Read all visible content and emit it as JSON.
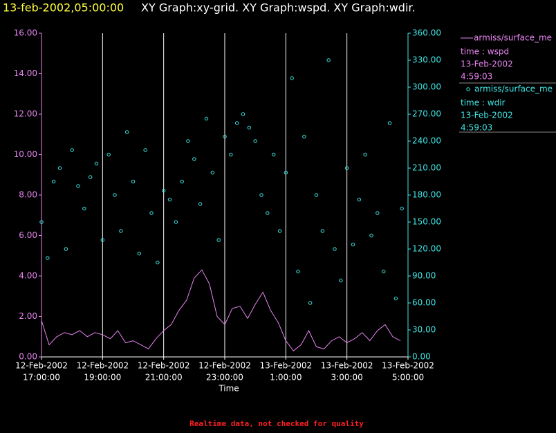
{
  "header": {
    "timestamp": "13-feb-2002,05:00:00",
    "graphs": "XY Graph:xy-grid.  XY Graph:wspd.  XY Graph:wdir."
  },
  "footer": "Realtime data, not checked for quality",
  "chart_data": {
    "type": "line",
    "x_label": "Time",
    "grid": true,
    "xlim": [
      "2002-02-12T17:00:00",
      "2002-02-13T05:00:00"
    ],
    "xticks": [
      {
        "value": "2002-02-12T17:00:00",
        "label": [
          "12-Feb-2002",
          "17:00:00"
        ]
      },
      {
        "value": "2002-02-12T19:00:00",
        "label": [
          "12-Feb-2002",
          "19:00:00"
        ]
      },
      {
        "value": "2002-02-12T21:00:00",
        "label": [
          "12-Feb-2002",
          "21:00:00"
        ]
      },
      {
        "value": "2002-02-12T23:00:00",
        "label": [
          "12-Feb-2002",
          "23:00:00"
        ]
      },
      {
        "value": "2002-02-13T01:00:00",
        "label": [
          "13-Feb-2002",
          "1:00:00"
        ]
      },
      {
        "value": "2002-02-13T03:00:00",
        "label": [
          "13-Feb-2002",
          "3:00:00"
        ]
      },
      {
        "value": "2002-02-13T05:00:00",
        "label": [
          "13-Feb-2002",
          "5:00:00"
        ]
      }
    ],
    "ylim": [
      0,
      16
    ],
    "yticks": [
      {
        "value": 0,
        "label": "0.00"
      },
      {
        "value": 2,
        "label": "2.00"
      },
      {
        "value": 4,
        "label": "4.00"
      },
      {
        "value": 6,
        "label": "6.00"
      },
      {
        "value": 8,
        "label": "8.00"
      },
      {
        "value": 10,
        "label": "10.00"
      },
      {
        "value": 12,
        "label": "12.00"
      },
      {
        "value": 14,
        "label": "14.00"
      },
      {
        "value": 16,
        "label": "16.00"
      }
    ],
    "y2lim": [
      0,
      360
    ],
    "y2ticks": [
      {
        "value": 0,
        "label": "0.00"
      },
      {
        "value": 30,
        "label": "30.00"
      },
      {
        "value": 60,
        "label": "60.00"
      },
      {
        "value": 90,
        "label": "90.00"
      },
      {
        "value": 120,
        "label": "120.00"
      },
      {
        "value": 150,
        "label": "150.00"
      },
      {
        "value": 180,
        "label": "180.00"
      },
      {
        "value": 210,
        "label": "210.00"
      },
      {
        "value": 240,
        "label": "240.00"
      },
      {
        "value": 270,
        "label": "270.00"
      },
      {
        "value": 300,
        "label": "300.00"
      },
      {
        "value": 330,
        "label": "330.00"
      },
      {
        "value": 360,
        "label": "360.00"
      }
    ],
    "series": [
      {
        "name": "armiss/surface_me",
        "details": [
          "time : wspd",
          "13-Feb-2002",
          "4:59:03"
        ],
        "color": "#e884f0",
        "type": "line",
        "x": [
          "2002-02-12T17:00:00",
          "2002-02-12T17:15:00",
          "2002-02-12T17:30:00",
          "2002-02-12T17:45:00",
          "2002-02-12T18:00:00",
          "2002-02-12T18:15:00",
          "2002-02-12T18:30:00",
          "2002-02-12T18:45:00",
          "2002-02-12T19:00:00",
          "2002-02-12T19:15:00",
          "2002-02-12T19:30:00",
          "2002-02-12T19:45:00",
          "2002-02-12T20:00:00",
          "2002-02-12T20:15:00",
          "2002-02-12T20:30:00",
          "2002-02-12T20:45:00",
          "2002-02-12T21:00:00",
          "2002-02-12T21:15:00",
          "2002-02-12T21:30:00",
          "2002-02-12T21:45:00",
          "2002-02-12T22:00:00",
          "2002-02-12T22:15:00",
          "2002-02-12T22:30:00",
          "2002-02-12T22:45:00",
          "2002-02-12T23:00:00",
          "2002-02-12T23:15:00",
          "2002-02-12T23:30:00",
          "2002-02-12T23:45:00",
          "2002-02-13T00:00:00",
          "2002-02-13T00:15:00",
          "2002-02-13T00:30:00",
          "2002-02-13T00:45:00",
          "2002-02-13T01:00:00",
          "2002-02-13T01:15:00",
          "2002-02-13T01:30:00",
          "2002-02-13T01:45:00",
          "2002-02-13T02:00:00",
          "2002-02-13T02:15:00",
          "2002-02-13T02:30:00",
          "2002-02-13T02:45:00",
          "2002-02-13T03:00:00",
          "2002-02-13T03:15:00",
          "2002-02-13T03:30:00",
          "2002-02-13T03:45:00",
          "2002-02-13T04:00:00",
          "2002-02-13T04:15:00",
          "2002-02-13T04:30:00",
          "2002-02-13T04:45:00"
        ],
        "values": [
          1.8,
          0.6,
          1.0,
          1.2,
          1.1,
          1.3,
          1.0,
          1.2,
          1.1,
          0.9,
          1.3,
          0.7,
          0.8,
          0.6,
          0.4,
          0.9,
          1.3,
          1.6,
          2.3,
          2.8,
          3.9,
          4.3,
          3.6,
          2.0,
          1.6,
          2.4,
          2.5,
          1.9,
          2.6,
          3.2,
          2.3,
          1.7,
          0.8,
          0.3,
          0.6,
          1.3,
          0.5,
          0.4,
          0.8,
          1.0,
          0.7,
          0.9,
          1.2,
          0.8,
          1.3,
          1.6,
          1.0,
          0.8
        ]
      },
      {
        "name": "armiss/surface_me",
        "details": [
          "time : wdir",
          "13-Feb-2002",
          "4:59:03"
        ],
        "color": "#40e8e8",
        "type": "scatter",
        "axis": "y2",
        "x": [
          "2002-02-12T17:00:00",
          "2002-02-12T17:12:00",
          "2002-02-12T17:24:00",
          "2002-02-12T17:36:00",
          "2002-02-12T17:48:00",
          "2002-02-12T18:00:00",
          "2002-02-12T18:12:00",
          "2002-02-12T18:24:00",
          "2002-02-12T18:36:00",
          "2002-02-12T18:48:00",
          "2002-02-12T19:00:00",
          "2002-02-12T19:12:00",
          "2002-02-12T19:24:00",
          "2002-02-12T19:36:00",
          "2002-02-12T19:48:00",
          "2002-02-12T20:00:00",
          "2002-02-12T20:12:00",
          "2002-02-12T20:24:00",
          "2002-02-12T20:36:00",
          "2002-02-12T20:48:00",
          "2002-02-12T21:00:00",
          "2002-02-12T21:12:00",
          "2002-02-12T21:24:00",
          "2002-02-12T21:36:00",
          "2002-02-12T21:48:00",
          "2002-02-12T22:00:00",
          "2002-02-12T22:12:00",
          "2002-02-12T22:24:00",
          "2002-02-12T22:36:00",
          "2002-02-12T22:48:00",
          "2002-02-12T23:00:00",
          "2002-02-12T23:12:00",
          "2002-02-12T23:24:00",
          "2002-02-12T23:36:00",
          "2002-02-12T23:48:00",
          "2002-02-13T00:00:00",
          "2002-02-13T00:12:00",
          "2002-02-13T00:24:00",
          "2002-02-13T00:36:00",
          "2002-02-13T00:48:00",
          "2002-02-13T01:00:00",
          "2002-02-13T01:12:00",
          "2002-02-13T01:24:00",
          "2002-02-13T01:36:00",
          "2002-02-13T01:48:00",
          "2002-02-13T02:00:00",
          "2002-02-13T02:12:00",
          "2002-02-13T02:24:00",
          "2002-02-13T02:36:00",
          "2002-02-13T02:48:00",
          "2002-02-13T03:00:00",
          "2002-02-13T03:12:00",
          "2002-02-13T03:24:00",
          "2002-02-13T03:36:00",
          "2002-02-13T03:48:00",
          "2002-02-13T04:00:00",
          "2002-02-13T04:12:00",
          "2002-02-13T04:24:00",
          "2002-02-13T04:36:00",
          "2002-02-13T04:48:00"
        ],
        "values": [
          150,
          110,
          195,
          210,
          120,
          230,
          190,
          165,
          200,
          215,
          130,
          225,
          180,
          140,
          250,
          195,
          115,
          230,
          160,
          105,
          185,
          175,
          150,
          195,
          240,
          220,
          170,
          265,
          205,
          130,
          245,
          225,
          260,
          270,
          255,
          240,
          180,
          160,
          225,
          140,
          205,
          310,
          95,
          245,
          60,
          180,
          140,
          330,
          120,
          85,
          210,
          125,
          175,
          225,
          135,
          160,
          95,
          260,
          65,
          165
        ]
      }
    ]
  }
}
